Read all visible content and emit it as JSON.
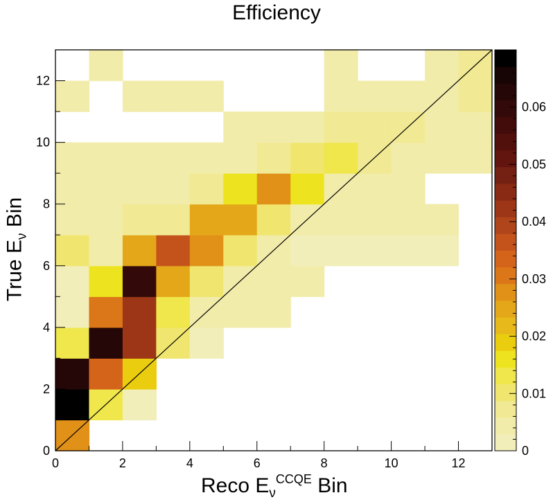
{
  "chart_data": {
    "type": "heatmap",
    "title": "Efficiency",
    "xlabel": {
      "main": "Reco E",
      "sub": "ν",
      "sup": "CCQE",
      "suffix": " Bin"
    },
    "ylabel": {
      "main": "True E",
      "sub": "ν",
      "suffix": " Bin"
    },
    "x_range": [
      0,
      13
    ],
    "y_range": [
      0,
      13
    ],
    "x_ticks": [
      "0",
      "2",
      "4",
      "6",
      "8",
      "10",
      "12"
    ],
    "y_ticks": [
      "0",
      "2",
      "4",
      "6",
      "8",
      "10",
      "12"
    ],
    "colorbar": {
      "range": [
        0,
        0.07
      ],
      "ticks": [
        "0",
        "0.01",
        "0.02",
        "0.03",
        "0.04",
        "0.05",
        "0.06"
      ],
      "colors": [
        "#f2eeb9",
        "#f2ecaa",
        "#f1e993",
        "#f0e66f",
        "#efe74c",
        "#ede41f",
        "#ebcd0f",
        "#e8b91a",
        "#e4a71a",
        "#e19118",
        "#db7718",
        "#d5641b",
        "#c4531b",
        "#b0441a",
        "#9c3617",
        "#882a14",
        "#742012",
        "#62140f",
        "#52100c",
        "#420c0a",
        "#330a09",
        "#250707",
        "#170404",
        "#000000"
      ]
    },
    "diagonal_line": true,
    "cells_note": "value per cell, rows by true bin (y), columns by reco bin (x); 0 = empty",
    "z": [
      [
        0.027,
        0,
        0,
        0,
        0,
        0,
        0,
        0,
        0,
        0,
        0,
        0,
        0
      ],
      [
        0.069,
        0.012,
        0.002,
        0,
        0,
        0,
        0,
        0,
        0,
        0,
        0,
        0,
        0
      ],
      [
        0.064,
        0.034,
        0.02,
        0,
        0,
        0,
        0,
        0,
        0,
        0,
        0,
        0,
        0
      ],
      [
        0.012,
        0.063,
        0.043,
        0.01,
        0.002,
        0,
        0,
        0,
        0,
        0,
        0,
        0,
        0
      ],
      [
        0.002,
        0.03,
        0.043,
        0.013,
        0.003,
        0.003,
        0.003,
        0,
        0,
        0,
        0,
        0,
        0
      ],
      [
        0.002,
        0.015,
        0.059,
        0.024,
        0.01,
        0.004,
        0.003,
        0.003,
        0,
        0,
        0,
        0,
        0
      ],
      [
        0.009,
        0.003,
        0.024,
        0.036,
        0.028,
        0.01,
        0.004,
        0.002,
        0.002,
        0.002,
        0.002,
        0.002,
        0
      ],
      [
        0.003,
        0.003,
        0.006,
        0.008,
        0.024,
        0.024,
        0.011,
        0.003,
        0.003,
        0.003,
        0.003,
        0.003,
        0
      ],
      [
        0.003,
        0.003,
        0.003,
        0.003,
        0.008,
        0.015,
        0.028,
        0.015,
        0.003,
        0.003,
        0.003,
        0,
        0
      ],
      [
        0.003,
        0.003,
        0.003,
        0.003,
        0.003,
        0.003,
        0.006,
        0.009,
        0.012,
        0.006,
        0.003,
        0.003,
        0.003
      ],
      [
        0,
        0,
        0,
        0,
        0,
        0.003,
        0.003,
        0.003,
        0.006,
        0.006,
        0.008,
        0.005,
        0.003
      ],
      [
        0.003,
        0,
        0.003,
        0.003,
        0.003,
        0,
        0,
        0,
        0.003,
        0.003,
        0.003,
        0.005,
        0.006
      ],
      [
        0,
        0.003,
        0,
        0,
        0,
        0,
        0,
        0,
        0.003,
        0,
        0,
        0.003,
        0.006
      ]
    ]
  }
}
